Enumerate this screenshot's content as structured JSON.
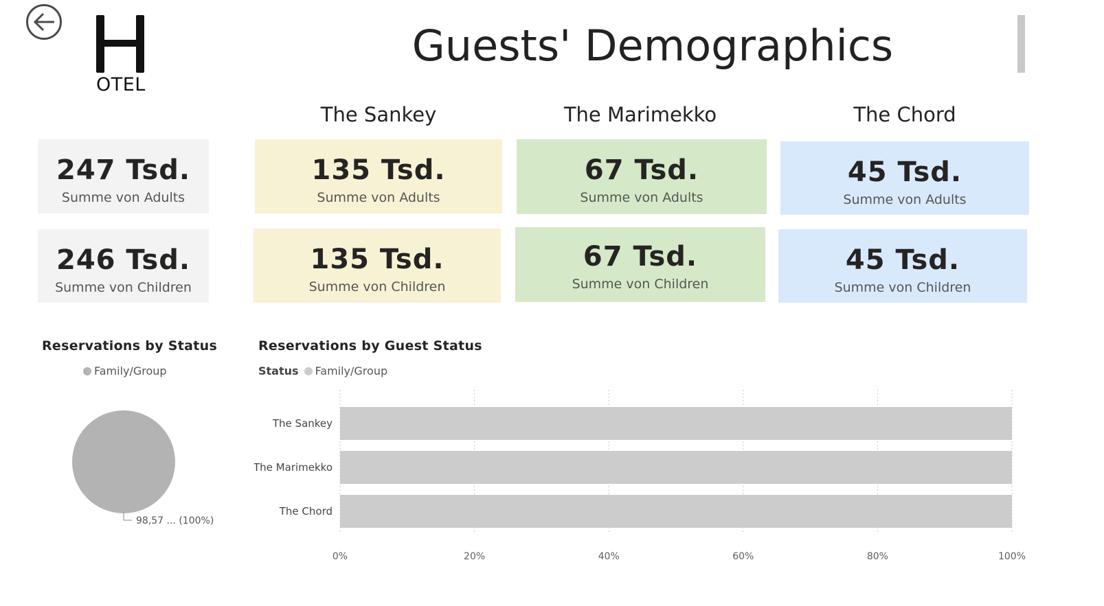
{
  "header": {
    "logo_text": "OTEL",
    "title": "Guests' Demographics"
  },
  "columns": [
    "The Sankey",
    "The Marimekko",
    "The Chord"
  ],
  "totals": {
    "adults": {
      "value": "247 Tsd.",
      "label": "Summe von Adults"
    },
    "children": {
      "value": "246 Tsd.",
      "label": "Summe von Children"
    }
  },
  "cards": [
    {
      "adults": {
        "value": "135 Tsd.",
        "label": "Summe von Adults"
      },
      "children": {
        "value": "135 Tsd.",
        "label": "Summe von Children"
      },
      "color": "#f7f2d4"
    },
    {
      "adults": {
        "value": "67 Tsd.",
        "label": "Summe von Adults"
      },
      "children": {
        "value": "67 Tsd.",
        "label": "Summe von Children"
      },
      "color": "#d5e9c8"
    },
    {
      "adults": {
        "value": "45 Tsd.",
        "label": "Summe von Adults"
      },
      "children": {
        "value": "45 Tsd.",
        "label": "Summe von Children"
      },
      "color": "#d9e9fc"
    }
  ],
  "colors": {
    "total_card": "#f3f3f3",
    "pie": "#b3b3b3",
    "bar": "#cccccc"
  },
  "chart_data": [
    {
      "type": "pie",
      "title": "Reservations by Status",
      "legend": [
        "Family/Group"
      ],
      "slices": [
        {
          "name": "Family/Group",
          "value": 100
        }
      ],
      "data_label": "98,57 ... (100%)"
    },
    {
      "type": "bar",
      "orientation": "horizontal",
      "stacked": "100%",
      "title": "Reservations by Guest Status",
      "legend_title": "Status",
      "legend": [
        "Family/Group"
      ],
      "categories": [
        "The Sankey",
        "The Marimekko",
        "The Chord"
      ],
      "series": [
        {
          "name": "Family/Group",
          "values": [
            100,
            100,
            100
          ]
        }
      ],
      "xlim": [
        0,
        100
      ],
      "ticks": [
        "0%",
        "20%",
        "40%",
        "60%",
        "80%",
        "100%"
      ],
      "grid": true
    }
  ]
}
